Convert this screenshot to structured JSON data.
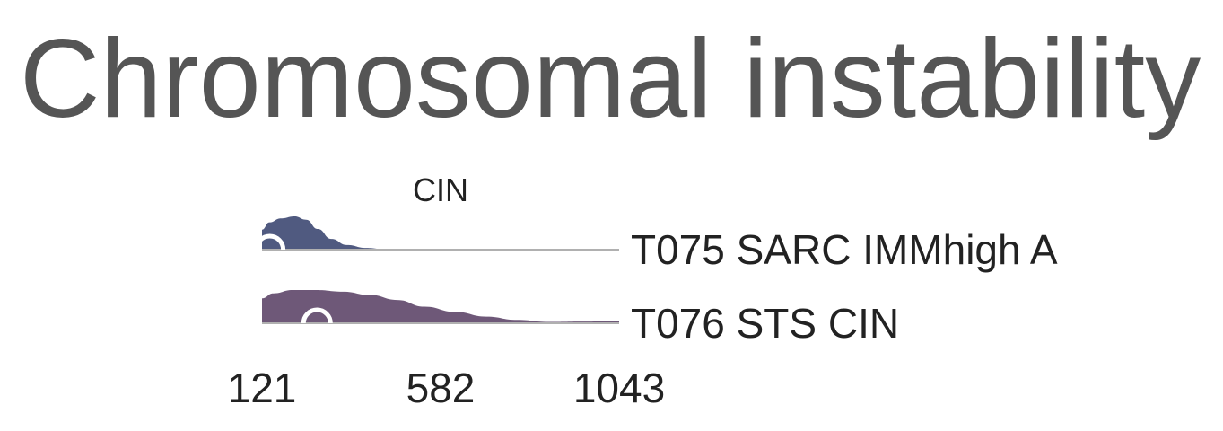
{
  "page": {
    "title": "Chromosomal instability"
  },
  "chart_data": {
    "type": "violin",
    "title": "CIN",
    "xlabel": "",
    "ylabel": "",
    "x_ticks": [
      121,
      582,
      1043
    ],
    "xlim": [
      121,
      1043
    ],
    "series": [
      {
        "name": "T075 SARC IMMhigh A",
        "color": "#505a80",
        "median": 141,
        "density": [
          [
            121,
            0.6
          ],
          [
            140,
            0.82
          ],
          [
            170,
            0.94
          ],
          [
            205,
            1.0
          ],
          [
            235,
            0.9
          ],
          [
            265,
            0.62
          ],
          [
            300,
            0.32
          ],
          [
            340,
            0.14
          ],
          [
            390,
            0.05
          ],
          [
            440,
            0.01
          ],
          [
            500,
            0.0
          ],
          [
            1043,
            0.0
          ]
        ]
      },
      {
        "name": "T076 STS CIN",
        "color": "#6e5878",
        "median": 263,
        "density": [
          [
            121,
            0.75
          ],
          [
            150,
            0.9
          ],
          [
            200,
            1.0
          ],
          [
            260,
            1.0
          ],
          [
            330,
            0.95
          ],
          [
            400,
            0.85
          ],
          [
            470,
            0.7
          ],
          [
            540,
            0.5
          ],
          [
            620,
            0.34
          ],
          [
            700,
            0.2
          ],
          [
            780,
            0.1
          ],
          [
            860,
            0.04
          ],
          [
            950,
            0.05
          ],
          [
            1043,
            0.06
          ]
        ]
      }
    ]
  }
}
